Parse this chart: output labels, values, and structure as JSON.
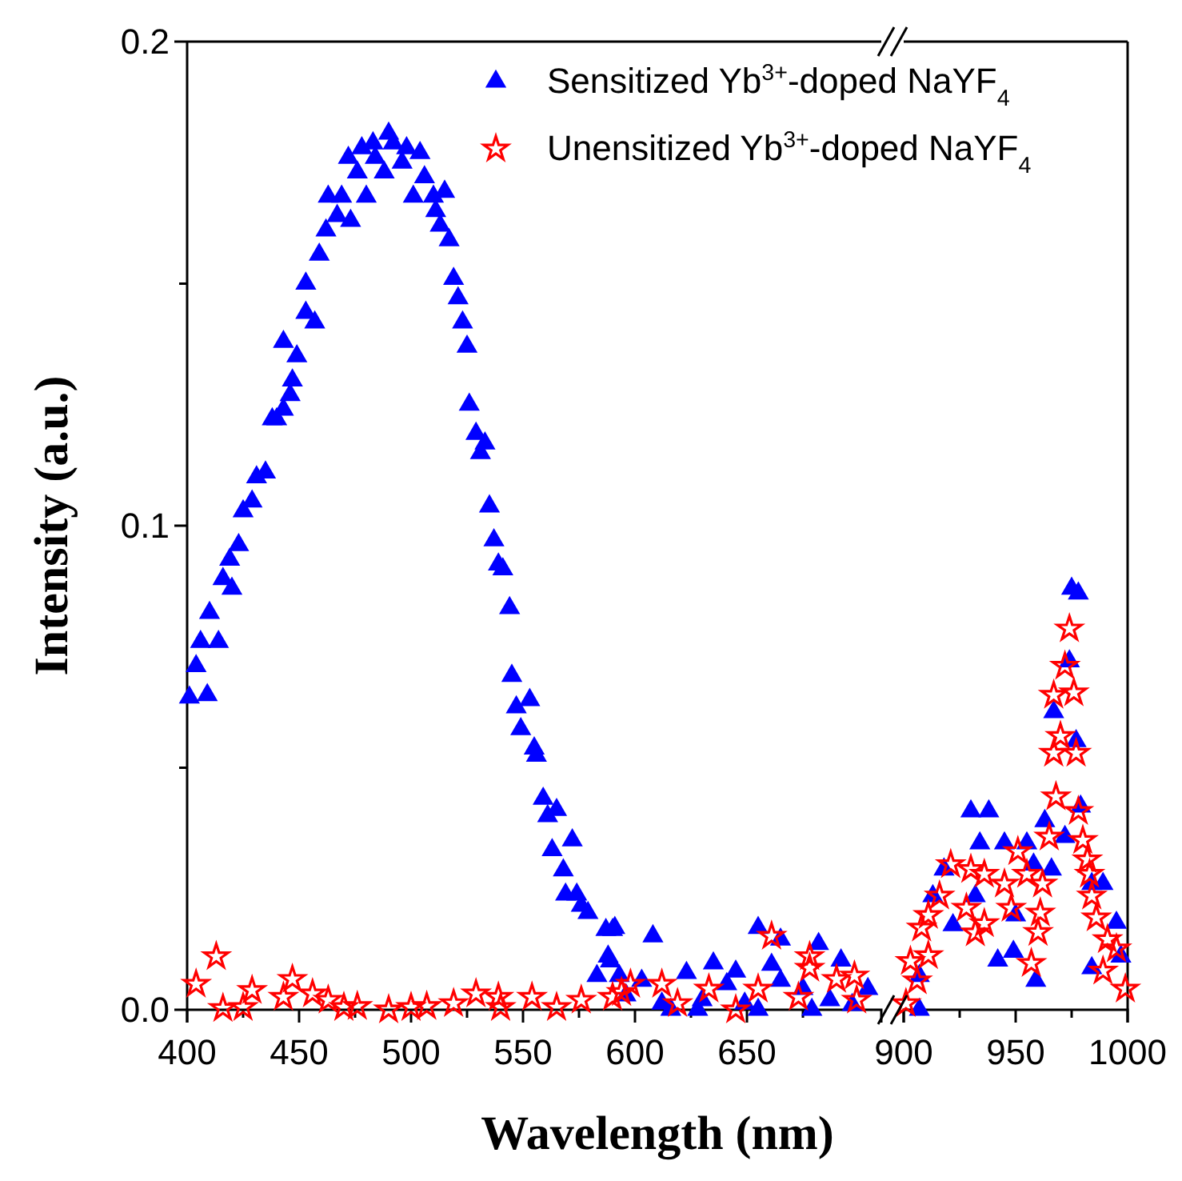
{
  "chart_data": [
    {
      "type": "scatter",
      "xlabel": "Wavelength (nm)",
      "ylabel": "Intensity (a.u.)",
      "xlim": [
        400,
        710
      ],
      "ylim": [
        0,
        0.2
      ],
      "xticks": [
        400,
        {
          "value": 425,
          "label": null
        },
        450,
        {
          "value": 475,
          "label": null
        },
        500,
        {
          "value": 525,
          "label": null
        },
        550,
        {
          "value": 575,
          "label": null
        },
        600,
        {
          "value": 625,
          "label": null
        },
        650,
        {
          "value": 675,
          "label": null
        }
      ],
      "yticks": [
        {
          "value": 0,
          "label": "0.0"
        },
        {
          "value": 0.05,
          "label": null
        },
        0.1,
        {
          "value": 0.15,
          "label": null
        },
        0.2
      ],
      "legend": "top right",
      "grid": false,
      "series": [
        {
          "name": "Sensitized Yb$^{3+}$-doped NaYF$_{4}$",
          "color": "#0000ff",
          "marker": "triangle",
          "x": [
            401,
            404,
            409,
            406,
            414,
            410,
            416,
            420,
            419,
            423,
            425,
            429,
            431,
            435,
            438,
            440,
            443,
            447,
            446,
            443,
            449,
            453,
            457,
            453,
            459,
            462,
            463,
            467,
            469,
            473,
            472,
            476,
            478,
            480,
            483,
            484,
            488,
            490,
            492,
            496,
            498,
            501,
            504,
            506,
            510,
            515,
            511,
            513,
            517,
            519,
            521,
            523,
            525,
            526,
            529,
            533,
            531,
            535,
            537,
            539,
            541,
            544,
            545,
            547,
            553,
            549,
            555,
            556,
            559,
            565,
            561,
            563,
            572,
            568,
            569,
            574,
            576,
            579,
            587,
            590,
            588,
            583,
            593,
            591,
            608,
            655,
            665,
            682,
            692,
            635,
            623,
            645,
            661,
            641,
            603,
            612,
            630,
            649,
            665,
            675,
            687,
            704,
            589,
            596,
            616,
            628,
            655,
            679,
            697
          ],
          "values": [
            0.0645,
            0.071,
            0.065,
            0.076,
            0.076,
            0.082,
            0.089,
            0.087,
            0.093,
            0.096,
            0.103,
            0.105,
            0.11,
            0.111,
            0.122,
            0.122,
            0.124,
            0.13,
            0.127,
            0.138,
            0.135,
            0.144,
            0.142,
            0.15,
            0.156,
            0.161,
            0.168,
            0.164,
            0.168,
            0.163,
            0.176,
            0.173,
            0.178,
            0.168,
            0.179,
            0.176,
            0.173,
            0.181,
            0.179,
            0.175,
            0.178,
            0.168,
            0.177,
            0.172,
            0.168,
            0.169,
            0.165,
            0.162,
            0.159,
            0.151,
            0.147,
            0.142,
            0.137,
            0.125,
            0.119,
            0.117,
            0.115,
            0.104,
            0.097,
            0.092,
            0.091,
            0.083,
            0.069,
            0.0625,
            0.064,
            0.058,
            0.054,
            0.0525,
            0.0436,
            0.0413,
            0.04,
            0.033,
            0.035,
            0.0288,
            0.0238,
            0.0238,
            0.0215,
            0.02,
            0.0165,
            0.0165,
            0.011,
            0.007,
            0.007,
            0.0169,
            0.0152,
            0.0169,
            0.0145,
            0.0136,
            0.0102,
            0.0096,
            0.0076,
            0.0079,
            0.0093,
            0.0053,
            0.006,
            0.0013,
            0.002,
            0.0013,
            0.006,
            0.0043,
            0.002,
            0.0043,
            0.01,
            0.003,
            0,
            0,
            0,
            0,
            0.001
          ]
        },
        {
          "name": "Unensitized Yb$^{3+}$-doped NaYF$_{4}$",
          "color": "#ff0000",
          "marker": "star",
          "x": [
            413,
            404,
            429,
            447,
            443,
            456,
            463,
            476,
            416,
            490,
            507,
            519,
            529,
            539,
            554,
            576,
            590,
            598,
            425,
            470,
            500,
            540,
            565,
            661,
            678,
            678,
            690,
            698,
            612,
            594,
            655,
            633,
            619,
            645,
            673,
            699
          ],
          "values": [
            0.011,
            0.0053,
            0.004,
            0.0063,
            0.0026,
            0.0033,
            0.002,
            0.0007,
            0.0003,
            0,
            0.0007,
            0.0013,
            0.0033,
            0.0026,
            0.0026,
            0.002,
            0.0026,
            0.0053,
            0.0005,
            0.0005,
            0.0005,
            0.0005,
            0.0005,
            0.0152,
            0.011,
            0.0086,
            0.0063,
            0.007,
            0.0053,
            0.0036,
            0.0043,
            0.0043,
            0.0013,
            0,
            0.0026,
            0.002
          ]
        }
      ]
    },
    {
      "type": "scatter",
      "xlim": [
        900,
        1000
      ],
      "ylim": [
        0,
        0.2
      ],
      "tick_labels": "x",
      "xticks": [
        900,
        {
          "value": 925,
          "label": null
        },
        950,
        {
          "value": 975,
          "label": null
        },
        1000
      ],
      "grid": false,
      "series": [
        {
          "color": "#0000ff",
          "marker": "triangle",
          "x": [
            975,
            978,
            974,
            967,
            977,
            963,
            979,
            930,
            938,
            934,
            945,
            955,
            966,
            918,
            913,
            922,
            932,
            950,
            984,
            989,
            995,
            942,
            949,
            959,
            984,
            907,
            907,
            997,
            972,
            958
          ],
          "values": [
            0.087,
            0.086,
            0.072,
            0.0615,
            0.0555,
            0.039,
            0.042,
            0.041,
            0.041,
            0.0344,
            0.0344,
            0.0344,
            0.029,
            0.029,
            0.0235,
            0.0175,
            0.0235,
            0.0195,
            0.026,
            0.026,
            0.018,
            0.0102,
            0.012,
            0.006,
            0.0086,
            0.007,
            0,
            0.011,
            0.0357,
            0.03
          ]
        },
        {
          "color": "#ff0000",
          "marker": "star",
          "x": [
            974,
            972,
            976,
            967,
            970,
            967,
            977,
            968,
            978,
            965,
            980,
            982,
            983,
            984,
            986,
            991,
            995,
            989,
            999,
            951,
            921,
            930,
            936,
            945,
            955,
            962,
            916,
            928,
            948,
            911,
            932,
            936,
            961,
            960,
            908,
            911,
            903,
            906,
            901,
            957
          ],
          "values": [
            0.0787,
            0.071,
            0.0655,
            0.065,
            0.0565,
            0.053,
            0.053,
            0.044,
            0.041,
            0.0357,
            0.035,
            0.031,
            0.028,
            0.0235,
            0.019,
            0.0145,
            0.0126,
            0.008,
            0.0043,
            0.0327,
            0.03,
            0.029,
            0.028,
            0.026,
            0.028,
            0.026,
            0.0235,
            0.021,
            0.021,
            0.0195,
            0.0159,
            0.0178,
            0.02,
            0.016,
            0.0169,
            0.0112,
            0.01,
            0.006,
            0.0013,
            0.0096
          ]
        }
      ]
    }
  ]
}
